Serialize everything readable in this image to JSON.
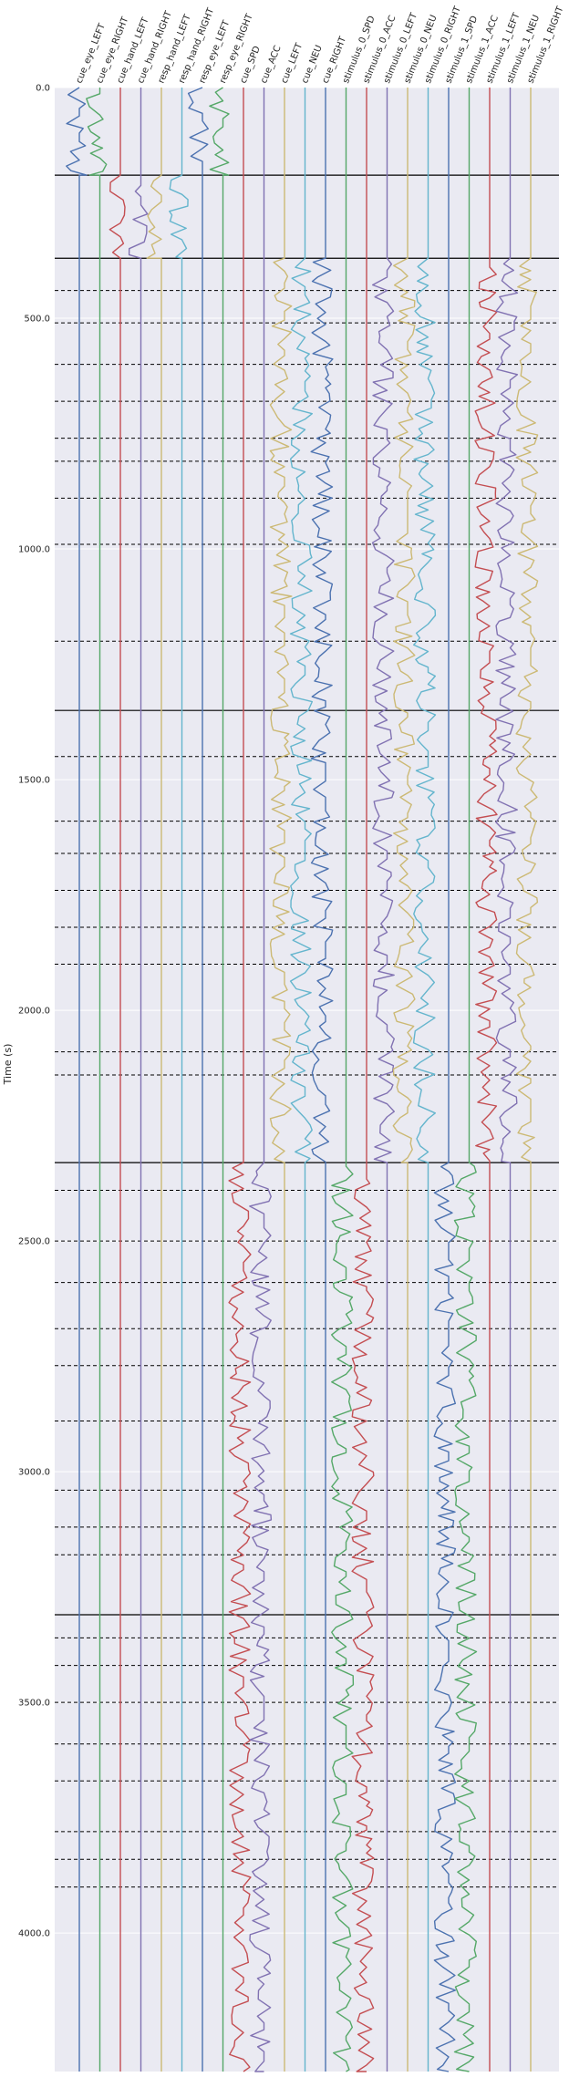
{
  "chart_data": {
    "type": "line",
    "title": "",
    "xlabel": "",
    "ylabel": "Time (s)",
    "ylim": [
      0,
      4300
    ],
    "y_inverted": true,
    "grid": true,
    "legend": "none",
    "background": "#eaeaf2",
    "yticks": [
      "0.0",
      "500.0",
      "1000.0",
      "1500.0",
      "2000.0",
      "2500.0",
      "3000.0",
      "3500.0",
      "4000.0"
    ],
    "channels": [
      {
        "name": "cue_eye_LEFT",
        "color": "#4c72b0",
        "active": [
          [
            0,
            190
          ]
        ]
      },
      {
        "name": "cue_eye_RIGHT",
        "color": "#55a868",
        "active": [
          [
            0,
            190
          ]
        ]
      },
      {
        "name": "cue_hand_LEFT",
        "color": "#c44e52",
        "active": [
          [
            190,
            370
          ]
        ]
      },
      {
        "name": "cue_hand_RIGHT",
        "color": "#8172b2",
        "active": [
          [
            190,
            370
          ]
        ]
      },
      {
        "name": "resp_hand_LEFT",
        "color": "#ccb974",
        "active": [
          [
            190,
            370
          ]
        ]
      },
      {
        "name": "resp_hand_RIGHT",
        "color": "#64b5cd",
        "active": [
          [
            190,
            370
          ]
        ]
      },
      {
        "name": "resp_eye_LEFT",
        "color": "#4c72b0",
        "active": [
          [
            0,
            190
          ]
        ]
      },
      {
        "name": "resp_eye_RIGHT",
        "color": "#55a868",
        "active": [
          [
            0,
            190
          ]
        ]
      },
      {
        "name": "cue_SPD",
        "color": "#c44e52",
        "active": [
          [
            2330,
            4300
          ]
        ]
      },
      {
        "name": "cue_ACC",
        "color": "#8172b2",
        "active": [
          [
            2330,
            4300
          ]
        ]
      },
      {
        "name": "cue_LEFT",
        "color": "#ccb974",
        "active": [
          [
            370,
            2330
          ]
        ]
      },
      {
        "name": "cue_NEU",
        "color": "#64b5cd",
        "active": [
          [
            370,
            2330
          ]
        ]
      },
      {
        "name": "cue_RIGHT",
        "color": "#4c72b0",
        "active": [
          [
            370,
            2330
          ]
        ]
      },
      {
        "name": "stimulus_0_SPD",
        "color": "#55a868",
        "active": [
          [
            2330,
            4300
          ]
        ]
      },
      {
        "name": "stimulus_0_ACC",
        "color": "#c44e52",
        "active": [
          [
            2330,
            4300
          ]
        ]
      },
      {
        "name": "stimulus_0_LEFT",
        "color": "#8172b2",
        "active": [
          [
            370,
            2330
          ]
        ]
      },
      {
        "name": "stimulus_0_NEU",
        "color": "#ccb974",
        "active": [
          [
            370,
            2330
          ]
        ]
      },
      {
        "name": "stimulus_0_RIGHT",
        "color": "#64b5cd",
        "active": [
          [
            370,
            2330
          ]
        ]
      },
      {
        "name": "stimulus_1_SPD",
        "color": "#4c72b0",
        "active": [
          [
            2330,
            4300
          ]
        ]
      },
      {
        "name": "stimulus_1_ACC",
        "color": "#55a868",
        "active": [
          [
            2330,
            4300
          ]
        ]
      },
      {
        "name": "stimulus_1_LEFT",
        "color": "#c44e52",
        "active": [
          [
            370,
            2330
          ]
        ]
      },
      {
        "name": "stimulus_1_NEU",
        "color": "#8172b2",
        "active": [
          [
            370,
            2330
          ]
        ]
      },
      {
        "name": "stimulus_1_RIGHT",
        "color": "#ccb974",
        "active": [
          [
            370,
            2330
          ]
        ]
      }
    ],
    "block_boundaries": [
      190,
      370,
      1350,
      2330,
      3310
    ],
    "event_lines": [
      440,
      510,
      600,
      680,
      760,
      810,
      890,
      990,
      1200,
      1450,
      1590,
      1660,
      1740,
      1820,
      1900,
      2090,
      2140,
      2390,
      2500,
      2590,
      2690,
      2770,
      2890,
      3040,
      3120,
      3180,
      3360,
      3420,
      3500,
      3590,
      3670,
      3780,
      3840,
      3900
    ]
  }
}
